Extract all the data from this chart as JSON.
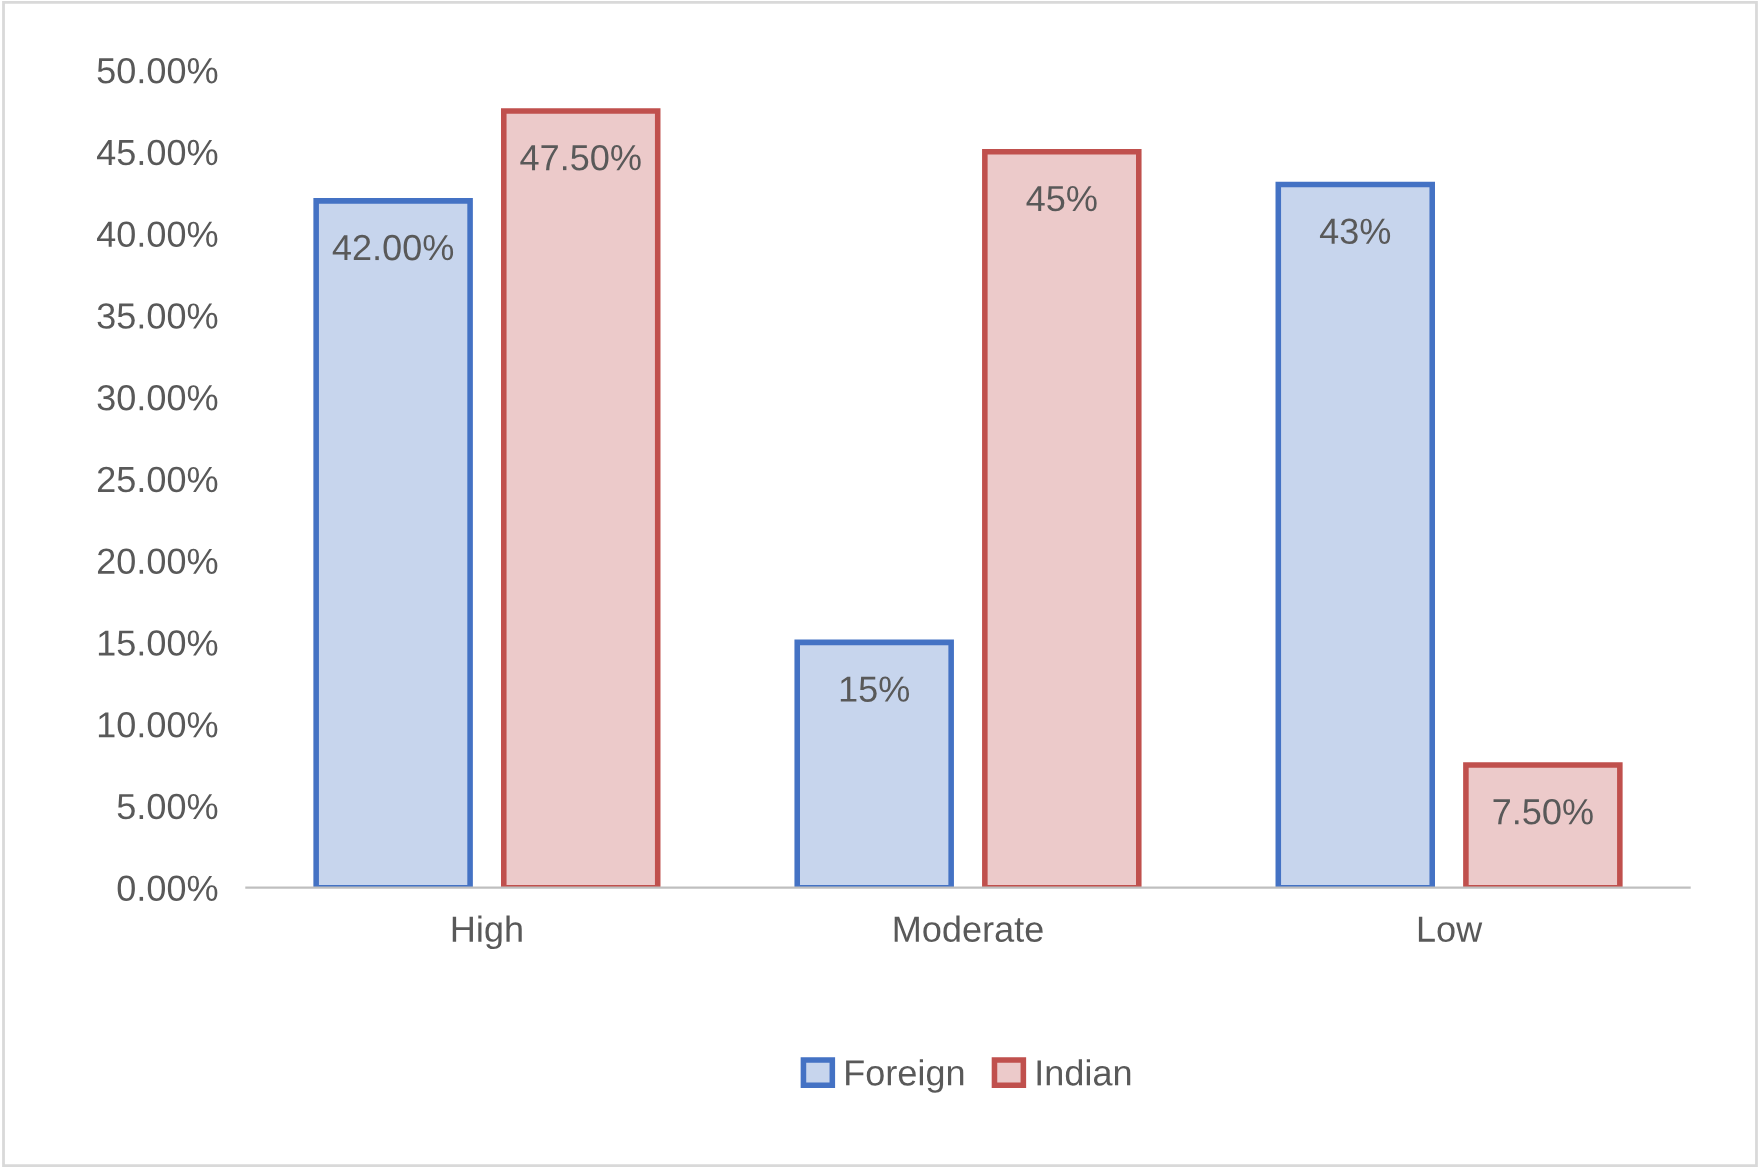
{
  "chart_data": {
    "type": "bar",
    "categories": [
      "High",
      "Moderate",
      "Low"
    ],
    "series": [
      {
        "name": "Foreign",
        "color": "#4472c4",
        "values": [
          42,
          15,
          43
        ],
        "value_labels": [
          "42.00%",
          "15%",
          "43%"
        ]
      },
      {
        "name": "Indian",
        "color": "#c0504d",
        "values": [
          47.5,
          45,
          7.5
        ],
        "value_labels": [
          "47.50%",
          "45%",
          "7.50%"
        ]
      }
    ],
    "ylim": [
      0,
      50
    ],
    "yticks": [
      {
        "value": 0,
        "label": "0.00%"
      },
      {
        "value": 5,
        "label": "5.00%"
      },
      {
        "value": 10,
        "label": "10.00%"
      },
      {
        "value": 15,
        "label": "15.00%"
      },
      {
        "value": 20,
        "label": "20.00%"
      },
      {
        "value": 25,
        "label": "25.00%"
      },
      {
        "value": 30,
        "label": "30.00%"
      },
      {
        "value": 35,
        "label": "35.00%"
      },
      {
        "value": 40,
        "label": "40.00%"
      },
      {
        "value": 45,
        "label": "45.00%"
      },
      {
        "value": 50,
        "label": "50.00%"
      }
    ],
    "grid": false,
    "legend": "bottom"
  }
}
